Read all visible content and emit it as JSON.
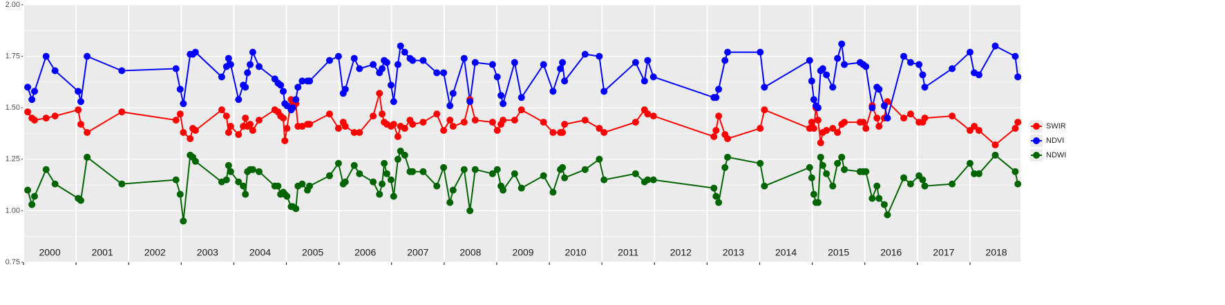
{
  "chart_data": {
    "type": "line",
    "x": [
      2000.08,
      2000.16,
      2000.21,
      2000.43,
      2000.6,
      2001.04,
      2001.09,
      2001.21,
      2001.87,
      2002.9,
      2002.98,
      2003.04,
      2003.17,
      2003.22,
      2003.27,
      2003.77,
      2003.86,
      2003.9,
      2003.94,
      2004.09,
      2004.18,
      2004.22,
      2004.26,
      2004.31,
      2004.36,
      2004.48,
      2004.78,
      2004.84,
      2004.89,
      2004.94,
      2004.97,
      2005.01,
      2005.09,
      2005.12,
      2005.18,
      2005.22,
      2005.3,
      2005.4,
      2005.44,
      2005.82,
      2005.99,
      2006.08,
      2006.12,
      2006.29,
      2006.39,
      2006.65,
      2006.77,
      2006.82,
      2006.86,
      2006.91,
      2006.99,
      2007.04,
      2007.12,
      2007.17,
      2007.25,
      2007.35,
      2007.4,
      2007.6,
      2007.86,
      2007.99,
      2008.11,
      2008.17,
      2008.38,
      2008.49,
      2008.59,
      2008.92,
      2009.01,
      2009.08,
      2009.12,
      2009.34,
      2009.47,
      2009.89,
      2010.07,
      2010.21,
      2010.25,
      2010.29,
      2010.68,
      2010.95,
      2011.04,
      2011.64,
      2011.81,
      2011.87,
      2011.98,
      2013.13,
      2013.17,
      2013.22,
      2013.34,
      2013.39,
      2014.01,
      2014.09,
      2014.95,
      2014.99,
      2015.03,
      2015.07,
      2015.11,
      2015.16,
      2015.2,
      2015.27,
      2015.39,
      2015.48,
      2015.56,
      2015.61,
      2015.91,
      2015.97,
      2016.02,
      2016.14,
      2016.23,
      2016.27,
      2016.37,
      2016.43,
      2016.74,
      2016.87,
      2017.03,
      2017.1,
      2017.14,
      2017.66,
      2018.0,
      2018.08,
      2018.17,
      2018.48,
      2018.86,
      2018.91
    ],
    "series": [
      {
        "name": "SWIR",
        "color": "#ff0000",
        "values": [
          1.48,
          1.45,
          1.44,
          1.45,
          1.46,
          1.49,
          1.42,
          1.38,
          1.48,
          1.44,
          1.47,
          1.38,
          1.35,
          1.4,
          1.39,
          1.49,
          1.46,
          1.38,
          1.41,
          1.37,
          1.41,
          1.45,
          1.41,
          1.42,
          1.39,
          1.44,
          1.49,
          1.48,
          1.46,
          1.45,
          1.34,
          1.4,
          1.54,
          1.52,
          1.52,
          1.41,
          1.41,
          1.42,
          1.42,
          1.47,
          1.4,
          1.43,
          1.41,
          1.38,
          1.38,
          1.46,
          1.57,
          1.47,
          1.43,
          1.42,
          1.41,
          1.42,
          1.36,
          1.41,
          1.4,
          1.44,
          1.42,
          1.43,
          1.47,
          1.39,
          1.44,
          1.41,
          1.43,
          1.54,
          1.44,
          1.43,
          1.39,
          1.42,
          1.44,
          1.44,
          1.49,
          1.43,
          1.38,
          1.38,
          1.38,
          1.42,
          1.44,
          1.4,
          1.38,
          1.43,
          1.49,
          1.47,
          1.46,
          1.36,
          1.39,
          1.46,
          1.37,
          1.35,
          1.4,
          1.49,
          1.4,
          1.43,
          1.4,
          1.5,
          1.44,
          1.33,
          1.38,
          1.39,
          1.4,
          1.38,
          1.42,
          1.43,
          1.43,
          1.43,
          1.4,
          1.51,
          1.45,
          1.41,
          1.45,
          1.53,
          1.45,
          1.47,
          1.43,
          1.43,
          1.45,
          1.46,
          1.39,
          1.41,
          1.39,
          1.32,
          1.4,
          1.43
        ]
      },
      {
        "name": "NDVI",
        "color": "#0000ff",
        "values": [
          1.6,
          1.54,
          1.58,
          1.75,
          1.68,
          1.58,
          1.53,
          1.75,
          1.68,
          1.69,
          1.59,
          1.52,
          1.76,
          1.76,
          1.77,
          1.65,
          1.7,
          1.74,
          1.71,
          1.54,
          1.61,
          1.6,
          1.67,
          1.71,
          1.77,
          1.7,
          1.64,
          1.62,
          1.61,
          1.58,
          1.52,
          1.51,
          1.49,
          1.5,
          1.54,
          1.6,
          1.63,
          1.63,
          1.63,
          1.73,
          1.75,
          1.57,
          1.59,
          1.74,
          1.69,
          1.71,
          1.67,
          1.69,
          1.73,
          1.72,
          1.61,
          1.53,
          1.71,
          1.8,
          1.77,
          1.74,
          1.73,
          1.73,
          1.67,
          1.67,
          1.51,
          1.57,
          1.74,
          1.53,
          1.72,
          1.71,
          1.65,
          1.56,
          1.52,
          1.72,
          1.55,
          1.71,
          1.58,
          1.69,
          1.72,
          1.63,
          1.76,
          1.75,
          1.58,
          1.72,
          1.63,
          1.73,
          1.65,
          1.55,
          1.55,
          1.59,
          1.73,
          1.77,
          1.77,
          1.6,
          1.73,
          1.63,
          1.54,
          1.51,
          1.5,
          1.68,
          1.69,
          1.66,
          1.6,
          1.74,
          1.81,
          1.71,
          1.72,
          1.71,
          1.7,
          1.5,
          1.6,
          1.59,
          1.51,
          1.45,
          1.75,
          1.72,
          1.71,
          1.66,
          1.6,
          1.69,
          1.77,
          1.67,
          1.66,
          1.8,
          1.75,
          1.65
        ]
      },
      {
        "name": "NDWI",
        "color": "#006400",
        "values": [
          1.1,
          1.03,
          1.07,
          1.2,
          1.13,
          1.06,
          1.05,
          1.26,
          1.13,
          1.15,
          1.08,
          0.95,
          1.27,
          1.26,
          1.24,
          1.14,
          1.15,
          1.22,
          1.19,
          1.14,
          1.12,
          1.08,
          1.19,
          1.2,
          1.2,
          1.19,
          1.12,
          1.12,
          1.08,
          1.09,
          1.08,
          1.07,
          1.02,
          1.02,
          1.01,
          1.12,
          1.13,
          1.1,
          1.12,
          1.17,
          1.23,
          1.13,
          1.14,
          1.22,
          1.18,
          1.14,
          1.08,
          1.13,
          1.23,
          1.18,
          1.15,
          1.07,
          1.25,
          1.29,
          1.27,
          1.19,
          1.19,
          1.19,
          1.12,
          1.21,
          1.04,
          1.1,
          1.2,
          1.0,
          1.2,
          1.18,
          1.2,
          1.12,
          1.1,
          1.18,
          1.11,
          1.17,
          1.09,
          1.2,
          1.21,
          1.16,
          1.2,
          1.25,
          1.15,
          1.18,
          1.14,
          1.15,
          1.15,
          1.11,
          1.07,
          1.04,
          1.21,
          1.26,
          1.23,
          1.12,
          1.21,
          1.16,
          1.08,
          1.04,
          1.04,
          1.26,
          1.22,
          1.18,
          1.12,
          1.23,
          1.26,
          1.2,
          1.19,
          1.19,
          1.19,
          1.06,
          1.12,
          1.06,
          1.03,
          0.98,
          1.16,
          1.13,
          1.17,
          1.15,
          1.12,
          1.13,
          1.23,
          1.18,
          1.18,
          1.27,
          1.19,
          1.13
        ]
      }
    ],
    "xlim": [
      2000,
      2018.96
    ],
    "xticks": [
      2000,
      2001,
      2002,
      2003,
      2004,
      2005,
      2006,
      2007,
      2008,
      2009,
      2010,
      2011,
      2012,
      2013,
      2014,
      2015,
      2016,
      2017,
      2018
    ],
    "ylim": [
      0.75,
      2.0
    ],
    "yticks": [
      {
        "value": 0.75,
        "label": "0.75"
      },
      {
        "value": 1.0,
        "label": "1.00"
      },
      {
        "value": 1.25,
        "label": "1.25"
      },
      {
        "value": 1.5,
        "label": "1.50"
      },
      {
        "value": 1.75,
        "label": "1.75"
      },
      {
        "value": 2.0,
        "label": "2.00"
      }
    ],
    "grid": true,
    "legend": "right"
  }
}
